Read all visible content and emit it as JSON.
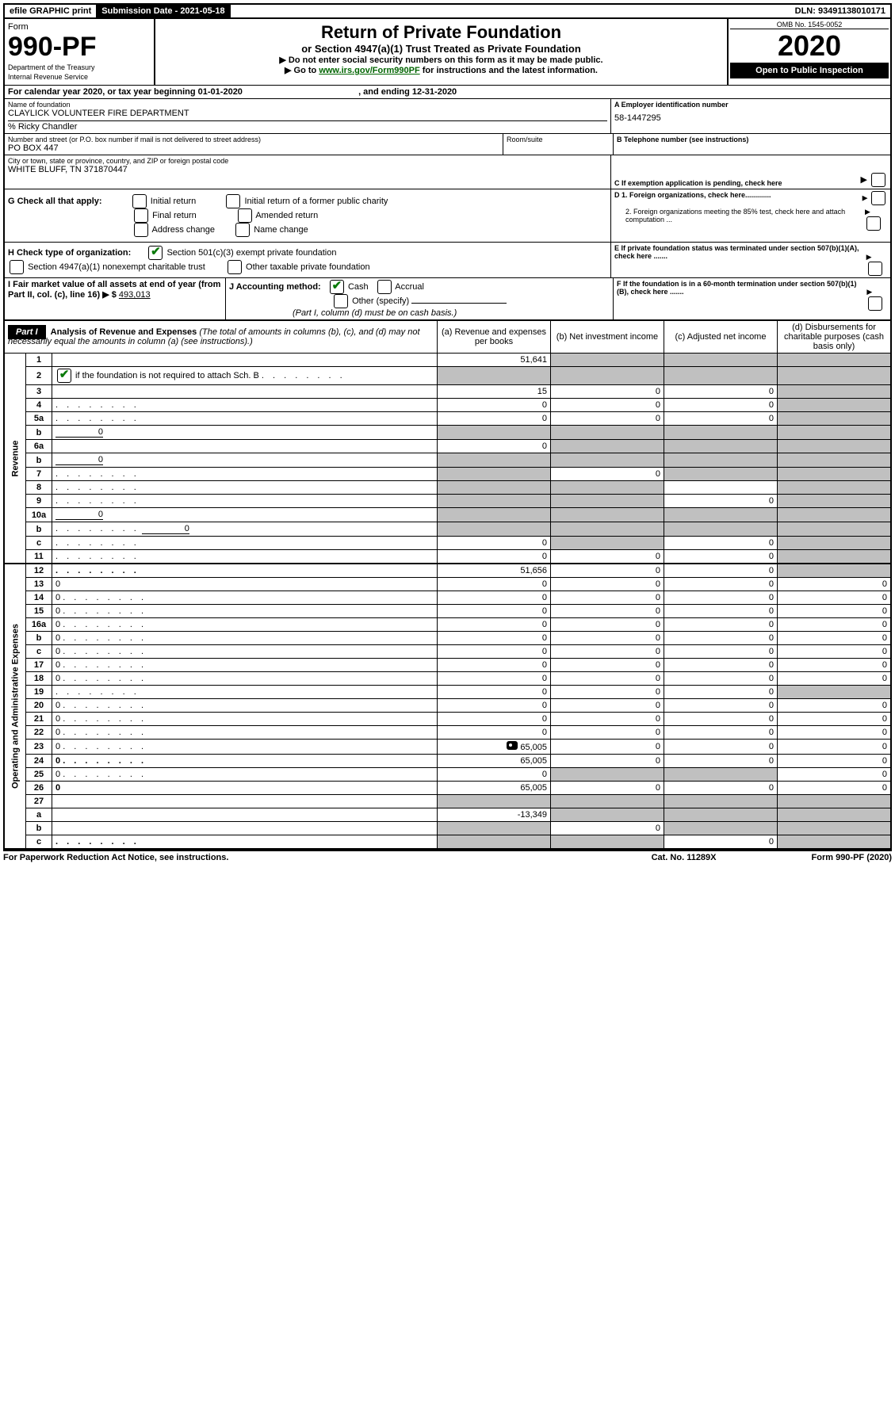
{
  "topbar": {
    "efile": "efile GRAPHIC print",
    "submission_label": "Submission Date - 2021-05-18",
    "dln": "DLN: 93491138010171"
  },
  "header": {
    "form_word": "Form",
    "form_no": "990-PF",
    "dept": "Department of the Treasury",
    "irs": "Internal Revenue Service",
    "title": "Return of Private Foundation",
    "subtitle": "or Section 4947(a)(1) Trust Treated as Private Foundation",
    "warn1": "Do not enter social security numbers on this form as it may be made public.",
    "warn2_pre": "Go to ",
    "warn2_link": "www.irs.gov/Form990PF",
    "warn2_post": " for instructions and the latest information.",
    "omb": "OMB No. 1545-0052",
    "year": "2020",
    "open": "Open to Public Inspection"
  },
  "cal": {
    "text_pre": "For calendar year 2020, or tax year beginning ",
    "begin": "01-01-2020",
    "mid": ", and ending ",
    "end": "12-31-2020"
  },
  "info": {
    "name_label": "Name of foundation",
    "name": "CLAYLICK VOLUNTEER FIRE DEPARTMENT",
    "co": "% Ricky Chandler",
    "addr_label": "Number and street (or P.O. box number if mail is not delivered to street address)",
    "addr": "PO BOX 447",
    "room_label": "Room/suite",
    "city_label": "City or town, state or province, country, and ZIP or foreign postal code",
    "city": "WHITE BLUFF, TN  371870447",
    "A_label": "A Employer identification number",
    "A_val": "58-1447295",
    "B_label": "B Telephone number (see instructions)",
    "C_label": "C If exemption application is pending, check here",
    "G_label": "G Check all that apply:",
    "G_opts": [
      "Initial return",
      "Initial return of a former public charity",
      "Final return",
      "Amended return",
      "Address change",
      "Name change"
    ],
    "H_label": "H Check type of organization:",
    "H1": "Section 501(c)(3) exempt private foundation",
    "H2": "Section 4947(a)(1) nonexempt charitable trust",
    "H3": "Other taxable private foundation",
    "D1": "D 1. Foreign organizations, check here.............",
    "D2": "2. Foreign organizations meeting the 85% test, check here and attach computation ...",
    "E": "E  If private foundation status was terminated under section 507(b)(1)(A), check here .......",
    "I_label": "I Fair market value of all assets at end of year (from Part II, col. (c), line 16) ▶ $",
    "I_val": "493,013",
    "J_label": "J Accounting method:",
    "J_cash": "Cash",
    "J_accrual": "Accrual",
    "J_other": "Other (specify)",
    "J_note": "(Part I, column (d) must be on cash basis.)",
    "F": "F  If the foundation is in a 60-month termination under section 507(b)(1)(B), check here ......."
  },
  "part1": {
    "label": "Part I",
    "title": "Analysis of Revenue and Expenses",
    "title_note": "(The total of amounts in columns (b), (c), and (d) may not necessarily equal the amounts in column (a) (see instructions).)",
    "cols": {
      "a": "(a)    Revenue and expenses per books",
      "b": "(b)   Net investment income",
      "c": "(c)   Adjusted net income",
      "d": "(d)   Disbursements for charitable purposes (cash basis only)"
    },
    "rev_label": "Revenue",
    "exp_label": "Operating and Administrative Expenses",
    "rows": [
      {
        "n": "1",
        "d": "",
        "a": "51,641",
        "b": "",
        "c": "",
        "grey": [
          "b",
          "c",
          "d"
        ]
      },
      {
        "n": "2",
        "d": "",
        "d2": " if the foundation is not required to attach Sch. B",
        "check": true,
        "dots": true,
        "a": "",
        "b": "",
        "c": "",
        "grey": [
          "a",
          "b",
          "c",
          "d"
        ]
      },
      {
        "n": "3",
        "d": "",
        "a": "15",
        "b": "0",
        "c": "0",
        "grey": [
          "d"
        ]
      },
      {
        "n": "4",
        "d": "",
        "dots": true,
        "a": "0",
        "b": "0",
        "c": "0",
        "grey": [
          "d"
        ]
      },
      {
        "n": "5a",
        "d": "",
        "dots": true,
        "a": "0",
        "b": "0",
        "c": "0",
        "grey": [
          "d"
        ]
      },
      {
        "n": "b",
        "d": "",
        "inline": "0",
        "a": "",
        "b": "",
        "c": "",
        "grey": [
          "a",
          "b",
          "c",
          "d"
        ]
      },
      {
        "n": "6a",
        "d": "",
        "a": "0",
        "b": "",
        "c": "",
        "grey": [
          "b",
          "c",
          "d"
        ]
      },
      {
        "n": "b",
        "d": "",
        "inline": "0",
        "a": "",
        "b": "",
        "c": "",
        "grey": [
          "a",
          "b",
          "c",
          "d"
        ]
      },
      {
        "n": "7",
        "d": "",
        "dots": true,
        "a": "",
        "b": "0",
        "c": "",
        "grey": [
          "a",
          "c",
          "d"
        ]
      },
      {
        "n": "8",
        "d": "",
        "dots": true,
        "a": "",
        "b": "",
        "c": "",
        "grey": [
          "a",
          "b",
          "d"
        ]
      },
      {
        "n": "9",
        "d": "",
        "dots": true,
        "a": "",
        "b": "",
        "c": "0",
        "grey": [
          "a",
          "b",
          "d"
        ]
      },
      {
        "n": "10a",
        "d": "",
        "inline": "0",
        "a": "",
        "b": "",
        "c": "",
        "grey": [
          "a",
          "b",
          "c",
          "d"
        ]
      },
      {
        "n": "b",
        "d": "",
        "dots": true,
        "inline": "0",
        "a": "",
        "b": "",
        "c": "",
        "grey": [
          "a",
          "b",
          "c",
          "d"
        ]
      },
      {
        "n": "c",
        "d": "",
        "dots": true,
        "a": "0",
        "b": "",
        "c": "0",
        "grey": [
          "b",
          "d"
        ]
      },
      {
        "n": "11",
        "d": "",
        "dots": true,
        "a": "0",
        "b": "0",
        "c": "0",
        "grey": [
          "d"
        ]
      },
      {
        "n": "12",
        "d": "",
        "bold": true,
        "dots": true,
        "a": "51,656",
        "b": "0",
        "c": "0",
        "grey": [
          "d"
        ]
      },
      {
        "n": "13",
        "d": "0",
        "a": "0",
        "b": "0",
        "c": "0"
      },
      {
        "n": "14",
        "d": "0",
        "dots": true,
        "a": "0",
        "b": "0",
        "c": "0"
      },
      {
        "n": "15",
        "d": "0",
        "dots": true,
        "a": "0",
        "b": "0",
        "c": "0"
      },
      {
        "n": "16a",
        "d": "0",
        "dots": true,
        "a": "0",
        "b": "0",
        "c": "0"
      },
      {
        "n": "b",
        "d": "0",
        "dots": true,
        "a": "0",
        "b": "0",
        "c": "0"
      },
      {
        "n": "c",
        "d": "0",
        "dots": true,
        "a": "0",
        "b": "0",
        "c": "0"
      },
      {
        "n": "17",
        "d": "0",
        "dots": true,
        "a": "0",
        "b": "0",
        "c": "0"
      },
      {
        "n": "18",
        "d": "0",
        "dots": true,
        "a": "0",
        "b": "0",
        "c": "0"
      },
      {
        "n": "19",
        "d": "",
        "dots": true,
        "a": "0",
        "b": "0",
        "c": "0",
        "grey": [
          "d"
        ]
      },
      {
        "n": "20",
        "d": "0",
        "dots": true,
        "a": "0",
        "b": "0",
        "c": "0"
      },
      {
        "n": "21",
        "d": "0",
        "dots": true,
        "a": "0",
        "b": "0",
        "c": "0"
      },
      {
        "n": "22",
        "d": "0",
        "dots": true,
        "a": "0",
        "b": "0",
        "c": "0"
      },
      {
        "n": "23",
        "d": "0",
        "dots": true,
        "icon": true,
        "a": "65,005",
        "b": "0",
        "c": "0"
      },
      {
        "n": "24",
        "d": "0",
        "bold": true,
        "dots": true,
        "a": "65,005",
        "b": "0",
        "c": "0"
      },
      {
        "n": "25",
        "d": "0",
        "dots": true,
        "a": "0",
        "b": "",
        "c": "",
        "grey": [
          "b",
          "c"
        ]
      },
      {
        "n": "26",
        "d": "0",
        "bold": true,
        "a": "65,005",
        "b": "0",
        "c": "0"
      },
      {
        "n": "27",
        "d": "",
        "a": "",
        "b": "",
        "c": "",
        "grey": [
          "a",
          "b",
          "c",
          "d"
        ]
      },
      {
        "n": "a",
        "d": "",
        "bold": true,
        "a": "-13,349",
        "b": "",
        "c": "",
        "grey": [
          "b",
          "c",
          "d"
        ]
      },
      {
        "n": "b",
        "d": "",
        "bold": true,
        "a": "",
        "b": "0",
        "c": "",
        "grey": [
          "a",
          "c",
          "d"
        ]
      },
      {
        "n": "c",
        "d": "",
        "bold": true,
        "dots": true,
        "a": "",
        "b": "",
        "c": "0",
        "grey": [
          "a",
          "b",
          "d"
        ]
      }
    ]
  },
  "footer": {
    "left": "For Paperwork Reduction Act Notice, see instructions.",
    "mid": "Cat. No. 11289X",
    "right": "Form 990-PF (2020)"
  }
}
